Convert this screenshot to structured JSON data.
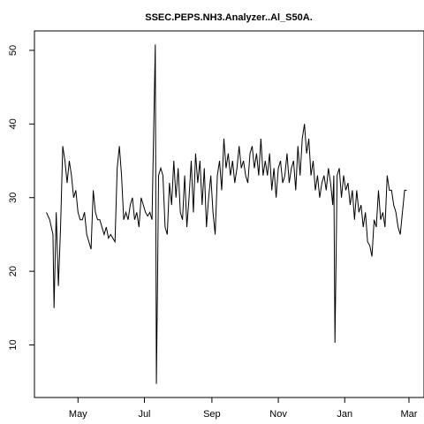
{
  "chart_data": {
    "type": "line",
    "title": "SSEC.PEPS.NH3.Analyzer..Al_S50A.",
    "series": [
      {
        "color": "#000000",
        "x": [
          -15,
          -12,
          -9,
          -8,
          -6,
          -4,
          -2,
          0,
          2,
          4,
          6,
          8,
          10,
          12,
          14,
          16,
          18,
          20,
          22,
          24,
          26,
          28,
          30,
          32,
          34,
          36,
          38,
          40,
          42,
          44,
          46,
          48,
          50,
          52,
          54,
          56,
          58,
          60,
          62,
          64,
          66,
          68,
          70,
          72,
          74,
          76,
          78,
          80,
          82,
          84,
          85,
          86,
          87,
          88,
          90,
          92,
          94,
          96,
          98,
          100,
          102,
          104,
          106,
          108,
          110,
          112,
          114,
          116,
          118,
          120,
          122,
          124,
          126,
          128,
          130,
          132,
          134,
          136,
          138,
          140,
          142,
          144,
          146,
          148,
          150,
          152,
          154,
          156,
          158,
          160,
          162,
          164,
          166,
          168,
          170,
          172,
          174,
          176,
          178,
          180,
          182,
          184,
          186,
          188,
          190,
          192,
          194,
          196,
          198,
          200,
          202,
          204,
          206,
          208,
          210,
          212,
          214,
          216,
          218,
          220,
          222,
          224,
          226,
          228,
          230,
          232,
          234,
          236,
          238,
          240,
          242,
          244,
          246,
          248,
          249,
          250,
          251,
          252,
          254,
          256,
          258,
          260,
          262,
          264,
          266,
          268,
          270,
          272,
          274,
          276,
          278,
          280,
          282,
          284,
          286,
          288,
          290,
          292,
          294,
          296,
          298,
          300,
          302,
          304,
          306,
          308,
          310,
          312,
          314,
          316
        ],
        "values": [
          28,
          27,
          25,
          15,
          28,
          18,
          26,
          37,
          35,
          32,
          35,
          33,
          30,
          31,
          28,
          27,
          27,
          28,
          25,
          24,
          23,
          31,
          28,
          27,
          27,
          26,
          25,
          26,
          24.5,
          25,
          24.5,
          24,
          34,
          37,
          33,
          27,
          28,
          27,
          29,
          30,
          27,
          28,
          26,
          30,
          29,
          28,
          27.5,
          28,
          27,
          43,
          50.8,
          4.7,
          17.7,
          33,
          34,
          33,
          26,
          25,
          32,
          29,
          35,
          30,
          34,
          28,
          27,
          33,
          26,
          30,
          35,
          28,
          36,
          32,
          35,
          29,
          34,
          26,
          30,
          33,
          28,
          25,
          33,
          35,
          31,
          38,
          34,
          36,
          33,
          35,
          32,
          34,
          37,
          34,
          35,
          33,
          32,
          36,
          37,
          34,
          36,
          33,
          38,
          33,
          35,
          33,
          36,
          31,
          34,
          30,
          34,
          35,
          32,
          33,
          36,
          32,
          34,
          35,
          31,
          37,
          33,
          38,
          40,
          36,
          38,
          33,
          35,
          31,
          33,
          30,
          32,
          33,
          31,
          34,
          32,
          29,
          33,
          10.3,
          21,
          33,
          34,
          30,
          33,
          31,
          32,
          29,
          31,
          27,
          31,
          28,
          29,
          26,
          28,
          24,
          23.5,
          22,
          27,
          26,
          31,
          27,
          28,
          26,
          33,
          31,
          31,
          29,
          28,
          26,
          25,
          28,
          31,
          31
        ]
      }
    ],
    "xlim": [
      -26,
      331
    ],
    "xticks": [
      {
        "value": 14,
        "label": "May"
      },
      {
        "value": 75,
        "label": "Jul"
      },
      {
        "value": 137,
        "label": "Sep"
      },
      {
        "value": 198,
        "label": "Nov"
      },
      {
        "value": 259,
        "label": "Jan"
      },
      {
        "value": 318,
        "label": "Mar"
      }
    ],
    "ylim": [
      2.86,
      52.64
    ],
    "yticks": [
      10,
      20,
      30,
      40,
      50
    ]
  }
}
